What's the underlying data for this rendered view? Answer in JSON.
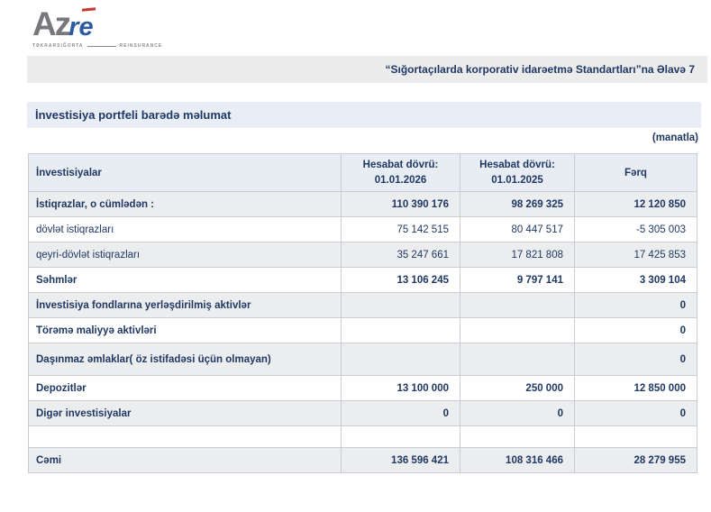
{
  "logo": {
    "text_primary": "Az",
    "text_secondary": "re",
    "tagline_left": "TƏKRARSIĞORTA",
    "tagline_right": "REINSURANCE",
    "color_primary": "#77787b",
    "color_secondary": "#2c5aa0",
    "accent_color": "#c13a32"
  },
  "header_band": {
    "text": "“Sığortaçılarda korporativ idarəetmə Standartları”na Əlavə 7"
  },
  "section": {
    "title": "İnvestisiya portfeli barədə məlumat",
    "unit_note": "(manatla)"
  },
  "table": {
    "columns": [
      {
        "label": "İnvestisiyalar"
      },
      {
        "line1": "Hesabat dövrü:",
        "line2": "01.01.2026"
      },
      {
        "line1": "Hesabat dövrü:",
        "line2": "01.01.2025"
      },
      {
        "label": "Fərq"
      }
    ],
    "rows": [
      {
        "label": "İstiqrazlar, o cümlədən :",
        "values": [
          "110 390 176",
          "98 269 325",
          "12 120 850"
        ],
        "bold": true,
        "shaded": true
      },
      {
        "label": "dövlət istiqrazları",
        "values": [
          "75 142 515",
          "80 447 517",
          "-5 305 003"
        ],
        "bold": false,
        "shaded": false
      },
      {
        "label": "qeyri-dövlət istiqrazları",
        "values": [
          "35 247 661",
          "17 821 808",
          "17 425 853"
        ],
        "bold": false,
        "shaded": true
      },
      {
        "label": "Səhmlər",
        "values": [
          "13 106 245",
          "9 797 141",
          "3 309 104"
        ],
        "bold": true,
        "shaded": false
      },
      {
        "label": "İnvestisiya fondlarına yerləşdirilmiş aktivlər",
        "values": [
          "",
          "",
          "0"
        ],
        "bold": true,
        "shaded": true
      },
      {
        "label": "Törəmə maliyyə aktivləri",
        "values": [
          "",
          "",
          "0"
        ],
        "bold": true,
        "shaded": false
      },
      {
        "label": "Daşınmaz əmlaklar( öz istifadəsi üçün olmayan)",
        "values": [
          "",
          "",
          "0"
        ],
        "bold": true,
        "shaded": true,
        "tall": true
      },
      {
        "label": "Depozitlər",
        "values": [
          "13 100 000",
          "250 000",
          "12 850 000"
        ],
        "bold": true,
        "shaded": false
      },
      {
        "label": "Digər investisiyalar",
        "values": [
          "0",
          "0",
          "0"
        ],
        "bold": true,
        "shaded": true
      },
      {
        "label": "",
        "values": [
          "",
          "",
          ""
        ],
        "bold": false,
        "shaded": false,
        "spacer": true
      },
      {
        "label": "Cəmi",
        "values": [
          "136 596 421",
          "108 316 466",
          "28 279 955"
        ],
        "bold": true,
        "shaded": true,
        "total": true
      }
    ]
  }
}
